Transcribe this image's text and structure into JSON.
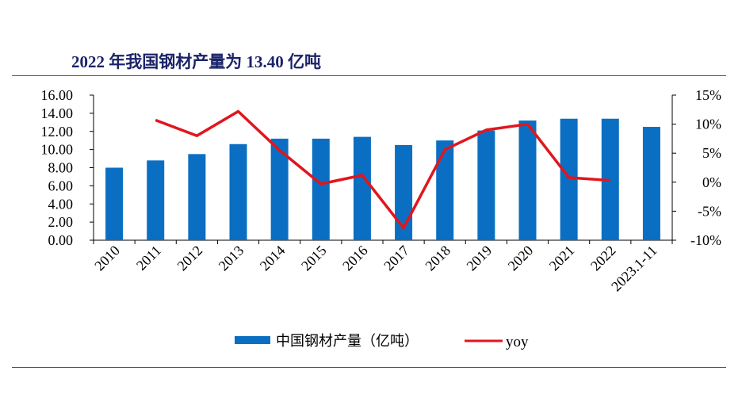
{
  "title": "2022 年我国钢材产量为 13.40 亿吨",
  "chart_data": {
    "type": "bar+line",
    "categories": [
      "2010",
      "2011",
      "2012",
      "2013",
      "2014",
      "2015",
      "2016",
      "2017",
      "2018",
      "2019",
      "2020",
      "2021",
      "2022",
      "2023.1-11"
    ],
    "series": [
      {
        "name": "中国钢材产量（亿吨）",
        "type": "bar",
        "axis": "left",
        "color": "#0a6fc2",
        "values": [
          8.0,
          8.8,
          9.5,
          10.6,
          11.2,
          11.2,
          11.4,
          10.5,
          11.0,
          12.1,
          13.2,
          13.4,
          13.4,
          12.5
        ]
      },
      {
        "name": "yoy",
        "type": "line",
        "axis": "right",
        "color": "#e0161e",
        "values": [
          null,
          10.7,
          8.0,
          12.2,
          5.5,
          -0.3,
          1.2,
          -7.9,
          5.6,
          9.0,
          10.0,
          0.8,
          0.3,
          null
        ]
      }
    ],
    "left_axis": {
      "range": [
        0,
        16
      ],
      "ticks": [
        "0.00",
        "2.00",
        "4.00",
        "6.00",
        "8.00",
        "10.00",
        "12.00",
        "14.00",
        "16.00"
      ]
    },
    "right_axis": {
      "range": [
        -10,
        15
      ],
      "unit": "%",
      "ticks": [
        "-10%",
        "-5%",
        "0%",
        "5%",
        "10%",
        "15%"
      ]
    },
    "grid": false,
    "legend_position": "bottom"
  }
}
